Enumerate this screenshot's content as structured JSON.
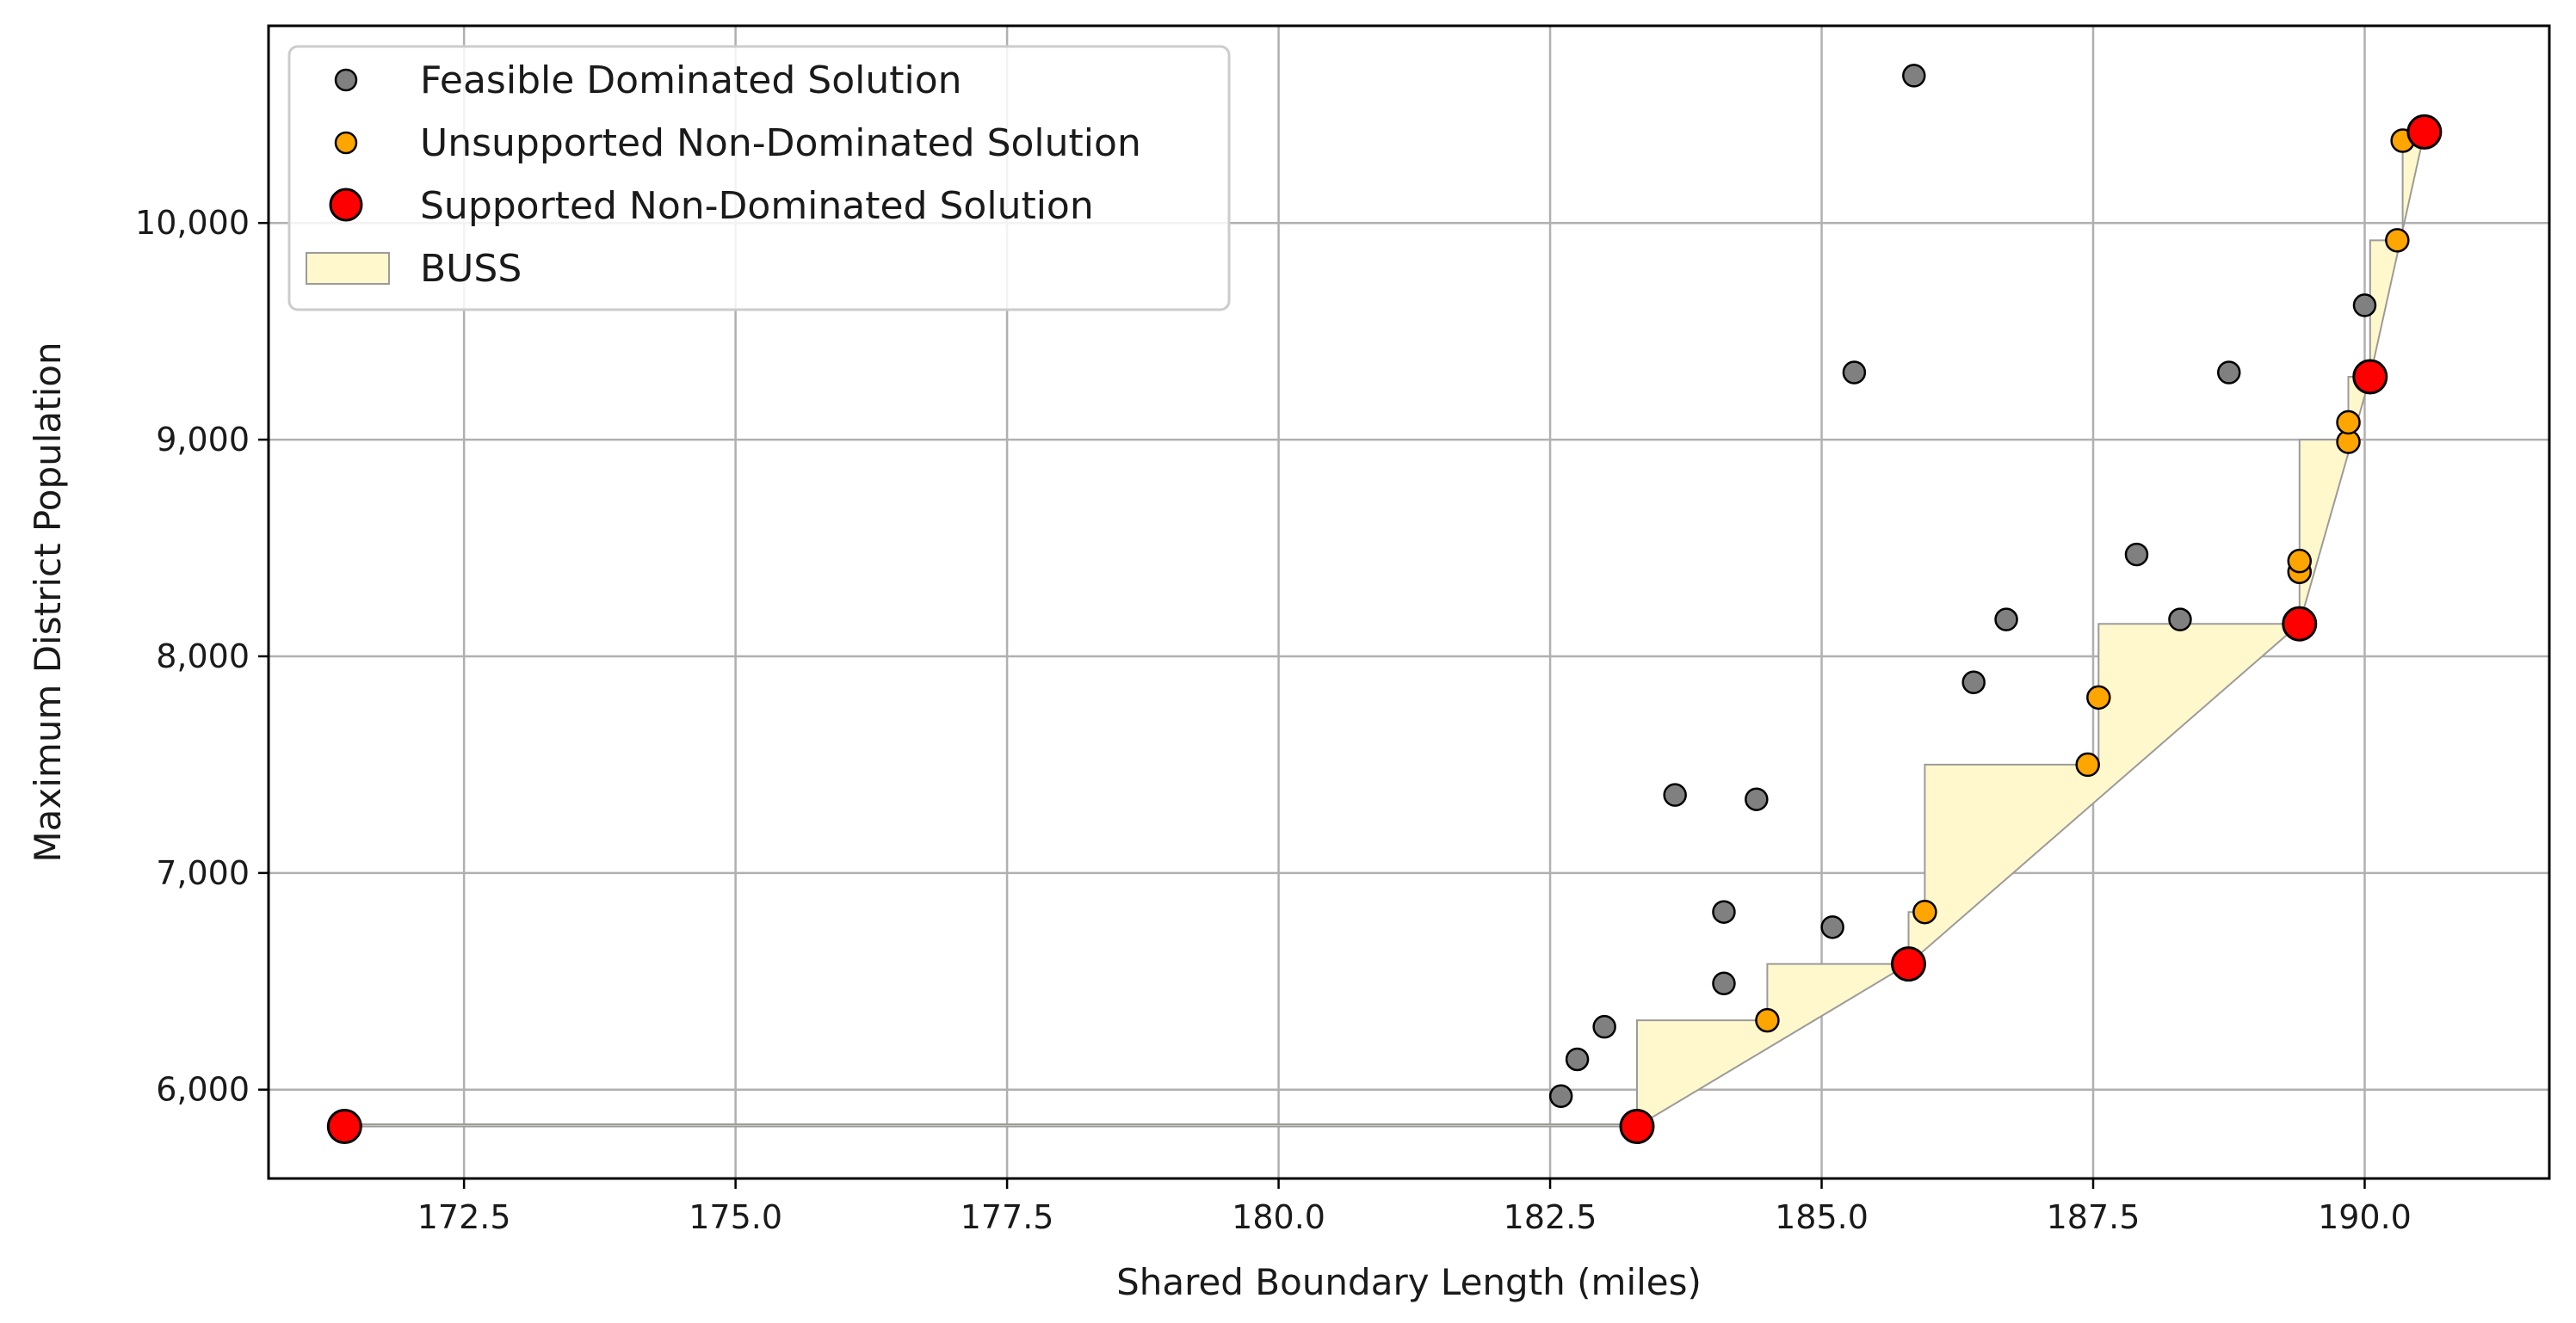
{
  "chart_data": {
    "type": "scatter",
    "title": "",
    "xlabel": "Shared Boundary Length (miles)",
    "ylabel": "Maximum District Population",
    "xlim": [
      170.7,
      191.7
    ],
    "ylim": [
      5590,
      10910
    ],
    "xticks": [
      172.5,
      175.0,
      177.5,
      180.0,
      182.5,
      185.0,
      187.5,
      190.0
    ],
    "xtick_labels": [
      "172.5",
      "175.0",
      "177.5",
      "180.0",
      "182.5",
      "185.0",
      "187.5",
      "190.0"
    ],
    "yticks": [
      6000,
      7000,
      8000,
      9000,
      10000
    ],
    "ytick_labels": [
      "6,000",
      "7,000",
      "8,000",
      "9,000",
      "10,000"
    ],
    "grid": true,
    "legend": {
      "position": "top-left",
      "entries": [
        {
          "label": "Feasible Dominated Solution",
          "marker": "dot",
          "color": "#808080"
        },
        {
          "label": "Unsupported Non-Dominated Solution",
          "marker": "dot",
          "color": "#ffa500"
        },
        {
          "label": "Supported Non-Dominated Solution",
          "marker": "dot-large",
          "color": "#ff0000"
        },
        {
          "label": "BUSS",
          "marker": "patch",
          "color": "#fff8cc"
        }
      ]
    },
    "series": [
      {
        "name": "Feasible Dominated Solution",
        "color": "#808080",
        "points": [
          [
            182.6,
            5970
          ],
          [
            182.75,
            6140
          ],
          [
            183.0,
            6290
          ],
          [
            183.65,
            7360
          ],
          [
            184.1,
            6820
          ],
          [
            184.1,
            6490
          ],
          [
            184.4,
            7340
          ],
          [
            185.1,
            6750
          ],
          [
            185.3,
            9310
          ],
          [
            185.85,
            10680
          ],
          [
            186.4,
            7880
          ],
          [
            186.7,
            8170
          ],
          [
            187.9,
            8470
          ],
          [
            188.3,
            8170
          ],
          [
            188.75,
            9310
          ],
          [
            190.0,
            9620
          ]
        ]
      },
      {
        "name": "Unsupported Non-Dominated Solution",
        "color": "#ffa500",
        "points": [
          [
            184.5,
            6320
          ],
          [
            185.95,
            6820
          ],
          [
            187.45,
            7500
          ],
          [
            187.55,
            7810
          ],
          [
            189.4,
            8390
          ],
          [
            189.4,
            8440
          ],
          [
            189.85,
            8990
          ],
          [
            189.85,
            9080
          ],
          [
            190.3,
            9920
          ],
          [
            190.35,
            10380
          ]
        ]
      },
      {
        "name": "Supported Non-Dominated Solution",
        "color": "#ff0000",
        "points": [
          [
            171.4,
            5830
          ],
          [
            183.3,
            5830
          ],
          [
            185.8,
            6580
          ],
          [
            189.4,
            8150
          ],
          [
            190.05,
            9290
          ],
          [
            190.55,
            10420
          ]
        ]
      }
    ],
    "buss_region": {
      "name": "BUSS",
      "color": "#fff8cc",
      "boundary": [
        [
          171.4,
          5830
        ],
        [
          183.3,
          5830
        ],
        [
          185.8,
          6580
        ],
        [
          189.4,
          8150
        ],
        [
          190.05,
          9290
        ],
        [
          190.55,
          10420
        ],
        [
          190.35,
          10420
        ],
        [
          190.35,
          9920
        ],
        [
          190.3,
          9920
        ],
        [
          190.05,
          9920
        ],
        [
          190.05,
          9290
        ],
        [
          189.85,
          9290
        ],
        [
          189.85,
          9000
        ],
        [
          189.4,
          9000
        ],
        [
          189.4,
          8150
        ],
        [
          187.55,
          8150
        ],
        [
          187.55,
          7810
        ],
        [
          187.55,
          7500
        ],
        [
          185.95,
          7500
        ],
        [
          185.95,
          6820
        ],
        [
          185.8,
          6820
        ],
        [
          185.8,
          6580
        ],
        [
          184.5,
          6580
        ],
        [
          184.5,
          6320
        ],
        [
          183.3,
          6320
        ],
        [
          183.3,
          5840
        ],
        [
          171.4,
          5840
        ]
      ]
    }
  }
}
